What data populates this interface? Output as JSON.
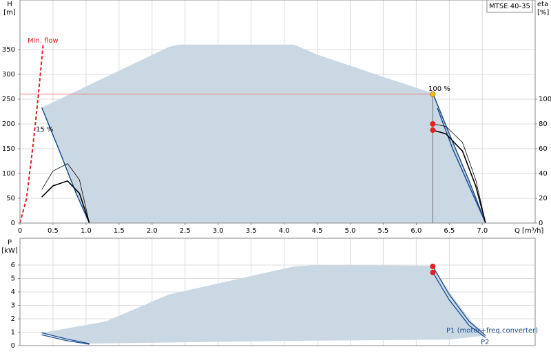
{
  "chart_data": [
    {
      "type": "line",
      "ylabel": "H",
      "ylabel_unit": "[m]",
      "y2label": "eta",
      "y2label_unit": "[%]",
      "xlabel": "Q [m³/h]",
      "product": "MTSE 40-35",
      "xlim": [
        0,
        7.8
      ],
      "ylim": [
        0,
        450
      ],
      "y2lim": [
        0,
        180
      ],
      "xticks": [
        0,
        0.5,
        {
          "value": 1,
          "label": "1.0"
        },
        1.5,
        {
          "value": 2,
          "label": "2.0"
        },
        2.5,
        {
          "value": 3,
          "label": "3.0"
        },
        3.5,
        {
          "value": 4,
          "label": "4.0"
        },
        4.5,
        {
          "value": 5,
          "label": "5.0"
        },
        5.5,
        {
          "value": 6,
          "label": "6.0"
        },
        6.5,
        {
          "value": 7,
          "label": "7.0"
        }
      ],
      "yticks": [
        0,
        50,
        100,
        150,
        200,
        250,
        300,
        350
      ],
      "y2ticks": [
        0,
        20,
        40,
        60,
        80,
        100
      ],
      "xtick_labels": true,
      "grid": true,
      "annotations": [
        {
          "text": "Min. flow",
          "color": "#e02020"
        },
        {
          "text": "15 %",
          "color": "#000000"
        },
        {
          "text": "100 %",
          "color": "#000000"
        }
      ],
      "series": [
        {
          "kind": "area",
          "color": "#cad8e4",
          "x": [
            0.33,
            2.25,
            2.4,
            4.15,
            4.5,
            5.5,
            6.25,
            6.5,
            6.8,
            7.05,
            1.05,
            0.85,
            0.6,
            0.33
          ],
          "values": [
            233,
            355,
            360,
            360,
            340,
            295,
            262,
            180,
            85,
            0,
            0,
            60,
            145,
            233
          ]
        },
        {
          "kind": "line",
          "color": "#f08080",
          "width": 1,
          "x": [
            0,
            6.25
          ],
          "values": [
            260,
            260
          ]
        },
        {
          "kind": "line",
          "color": "#707070",
          "width": 1,
          "x": [
            6.25,
            6.25
          ],
          "values": [
            0,
            260
          ]
        },
        {
          "kind": "line",
          "color": "#e02020",
          "width": 2,
          "dash": true,
          "x": [
            0,
            0.1,
            0.2,
            0.28,
            0.35
          ],
          "values": [
            0,
            50,
            160,
            260,
            360
          ]
        },
        {
          "kind": "line",
          "color": "#1a4d8f",
          "width": 1.5,
          "x": [
            0.33,
            0.6,
            0.85,
            1.05
          ],
          "values": [
            233,
            145,
            60,
            0
          ]
        },
        {
          "kind": "line",
          "color": "#1a4d8f",
          "width": 1.5,
          "x": [
            6.25,
            6.5,
            6.8,
            7.05
          ],
          "values": [
            262,
            180,
            85,
            0
          ]
        },
        {
          "kind": "line",
          "color": "#1a4d8f",
          "width": 1.5,
          "x": [
            6.32,
            6.55,
            6.85,
            7.05
          ],
          "values": [
            232,
            150,
            60,
            0
          ]
        },
        {
          "kind": "line",
          "color": "#000000",
          "width": 0.8,
          "axis": "y2",
          "x": [
            0.33,
            0.5,
            0.72,
            0.9,
            1.05
          ],
          "values": [
            27,
            42,
            48,
            35,
            0
          ]
        },
        {
          "kind": "line",
          "color": "#000000",
          "width": 1.6,
          "axis": "y2",
          "x": [
            0.33,
            0.5,
            0.72,
            0.9,
            1.05
          ],
          "values": [
            21,
            30,
            34,
            24,
            0
          ]
        },
        {
          "kind": "line",
          "color": "#000000",
          "width": 0.8,
          "axis": "y2",
          "x": [
            6.25,
            6.45,
            6.7,
            6.9,
            7.05
          ],
          "values": [
            80,
            78,
            65,
            35,
            0
          ]
        },
        {
          "kind": "line",
          "color": "#000000",
          "width": 1.6,
          "axis": "y2",
          "x": [
            6.25,
            6.45,
            6.7,
            6.9,
            7.05
          ],
          "values": [
            75,
            72,
            58,
            30,
            0
          ]
        },
        {
          "kind": "points",
          "color": "#e82020",
          "axis": "y2",
          "x": [
            6.25,
            6.25
          ],
          "values": [
            80,
            75
          ]
        },
        {
          "kind": "points",
          "color": "#f5c000",
          "x": [
            6.25
          ],
          "values": [
            260
          ]
        }
      ]
    },
    {
      "type": "line",
      "ylabel": "P",
      "ylabel_unit": "[kW]",
      "xlim": [
        0,
        7.8
      ],
      "ylim": [
        0,
        8
      ],
      "xticks": [
        0,
        0.5,
        1,
        1.5,
        2,
        2.5,
        3,
        3.5,
        4,
        4.5,
        5,
        5.5,
        6,
        6.5,
        7
      ],
      "yticks": [
        0,
        1,
        2,
        3,
        4,
        5,
        6
      ],
      "xtick_labels": false,
      "grid": true,
      "annotations": [
        {
          "text": "P1 (motor+freq.converter)",
          "color": "#1a4d8f"
        },
        {
          "text": "P2",
          "color": "#1a4d8f"
        }
      ],
      "series": [
        {
          "kind": "area",
          "color": "#cad8e4",
          "x": [
            0.33,
            1.3,
            2.25,
            4.15,
            4.5,
            6.25,
            6.5,
            6.8,
            7.05,
            6.5,
            4,
            1.05,
            0.7,
            0.33
          ],
          "values": [
            0.95,
            1.8,
            3.8,
            5.9,
            6.0,
            5.95,
            4.0,
            2.0,
            0.75,
            0.45,
            0.35,
            0.15,
            0.5,
            0.95
          ]
        },
        {
          "kind": "line",
          "color": "#1a4d8f",
          "width": 1.3,
          "x": [
            0.33,
            0.7,
            1.05
          ],
          "values": [
            0.95,
            0.5,
            0.15
          ]
        },
        {
          "kind": "line",
          "color": "#1a4d8f",
          "width": 1.3,
          "x": [
            0.33,
            0.7,
            1.05
          ],
          "values": [
            0.8,
            0.38,
            0.1
          ]
        },
        {
          "kind": "line",
          "color": "#1a4d8f",
          "width": 1.3,
          "x": [
            6.25,
            6.5,
            6.8,
            7.05
          ],
          "values": [
            5.9,
            3.8,
            1.8,
            0.75
          ]
        },
        {
          "kind": "line",
          "color": "#1a4d8f",
          "width": 1.3,
          "x": [
            6.25,
            6.5,
            6.8,
            7.05
          ],
          "values": [
            5.45,
            3.4,
            1.5,
            0.6
          ]
        },
        {
          "kind": "points",
          "color": "#e82020",
          "x": [
            6.25,
            6.25
          ],
          "values": [
            5.9,
            5.45
          ]
        }
      ]
    }
  ]
}
